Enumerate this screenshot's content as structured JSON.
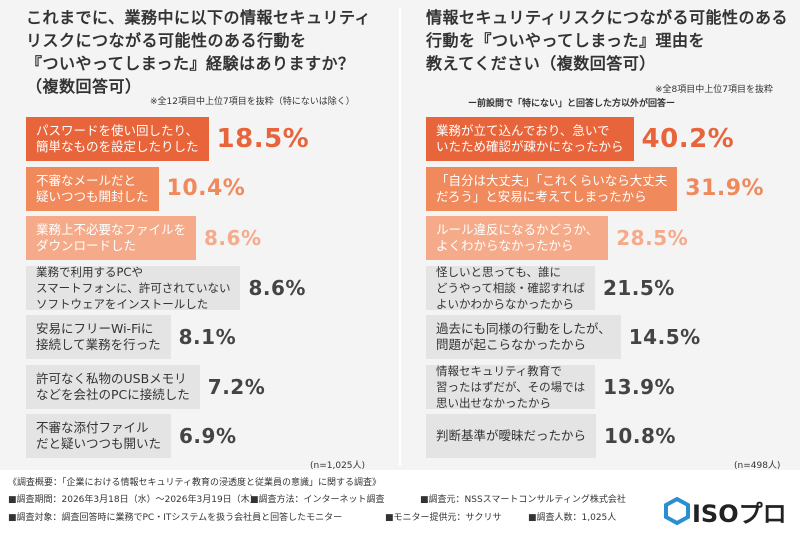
{
  "chart_data": [
    {
      "type": "bar",
      "title": "これまでに、業務中に以下の情報セキュリティ\nリスクにつながる可能性のある行動を\n『ついやってしまった』経験はありますか？\n（複数回答可）",
      "note": "※全12項目中上位7項目を抜粋（特にないは除く）",
      "sample": "(n=1,025人)",
      "categories": [
        "パスワードを使い回したり、\n簡単なものを設定したりした",
        "不審なメールだと\n疑いつつも開封した",
        "業務上不必要なファイルを\nダウンロードした",
        "業務で利用するPCや\nスマートフォンに、許可されていない\nソフトウェアをインストールした",
        "安易にフリーWi-Fiに\n接続して業務を行った",
        "許可なく私物のUSBメモリ\nなどを会社のPCに接続した",
        "不審な添付ファイル\nだと疑いつつも開いた"
      ],
      "values": [
        18.5,
        10.4,
        8.6,
        8.6,
        8.1,
        7.2,
        6.9
      ],
      "value_labels": [
        "18.5%",
        "10.4%",
        "8.6%",
        "8.6%",
        "8.1%",
        "7.2%",
        "6.9%"
      ],
      "colors": [
        "#e8643a",
        "#f08a5d",
        "#f5ab8a",
        "#e4e4e4",
        "#e4e4e4",
        "#e4e4e4",
        "#e4e4e4"
      ]
    },
    {
      "type": "bar",
      "title": "情報セキュリティリスクにつながる可能性のある\n行動を『ついやってしまった』理由を\n教えてください（複数回答可）",
      "note": "※全8項目中上位7項目を抜粋",
      "subtitle": "ー前設問で「特にない」と回答した方以外が回答ー",
      "sample": "(n=498人)",
      "categories": [
        "業務が立て込んでおり、急いで\nいたため確認が疎かになったから",
        "「自分は大丈夫」「これくらいなら大丈夫\nだろう」と安易に考えてしまったから",
        "ルール違反になるかどうか、\nよくわからなかったから",
        "怪しいと思っても、誰に\nどうやって相談・確認すれば\nよいかわからなかったから",
        "過去にも同様の行動をしたが、\n問題が起こらなかったから",
        "情報セキュリティ教育で\n習ったはずだが、その場では\n思い出せなかったから",
        "判断基準が曖昧だったから"
      ],
      "values": [
        40.2,
        31.9,
        28.5,
        21.5,
        14.5,
        13.9,
        10.8
      ],
      "value_labels": [
        "40.2%",
        "31.9%",
        "28.5%",
        "21.5%",
        "14.5%",
        "13.9%",
        "10.8%"
      ],
      "colors": [
        "#e8643a",
        "#f08a5d",
        "#f5ab8a",
        "#e4e4e4",
        "#e4e4e4",
        "#e4e4e4",
        "#e4e4e4"
      ]
    }
  ],
  "footer": {
    "heading": "《調査概要：「企業における情報セキュリティ教育の浸透度と従業員の意識」に関する調査》",
    "period": "■調査期間：2026年3月18日（水）〜2026年3月19日（木）",
    "method": "■調査方法：インターネット調査",
    "source": "■調査元：NSSスマートコンサルティング株式会社",
    "target": "■調査対象：調査回答時に業務でPC・ITシステムを扱う会社員と回答したモニター",
    "provider": "■モニター提供元：サクリサ",
    "count": "■調査人数：1,025人"
  },
  "logo": "ISOプロ"
}
